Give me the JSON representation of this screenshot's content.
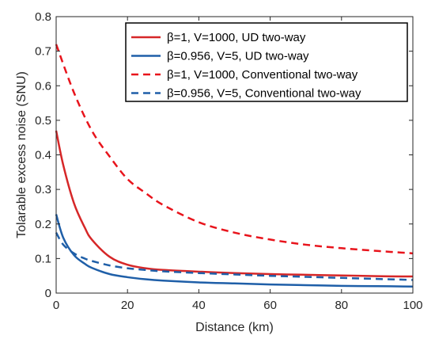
{
  "chart_data": {
    "type": "line",
    "xlabel": "Distance (km)",
    "ylabel": "Tolarable excess noise (SNU)",
    "xlim": [
      0,
      100
    ],
    "ylim": [
      0,
      0.8
    ],
    "x_ticks": [
      "0",
      "20",
      "40",
      "60",
      "80",
      "100"
    ],
    "y_ticks": [
      "0",
      "0.1",
      "0.2",
      "0.3",
      "0.4",
      "0.5",
      "0.6",
      "0.7",
      "0.8"
    ],
    "grid": false,
    "legend_position": "top-right",
    "series": [
      {
        "name": "β=1, V=1000, UD two-way",
        "color": "#d62728",
        "style": "solid",
        "x": [
          0,
          2,
          5,
          8,
          10,
          15,
          20,
          25,
          30,
          40,
          50,
          60,
          70,
          80,
          90,
          100
        ],
        "y": [
          0.47,
          0.37,
          0.26,
          0.19,
          0.155,
          0.105,
          0.082,
          0.072,
          0.067,
          0.062,
          0.058,
          0.055,
          0.053,
          0.051,
          0.049,
          0.048
        ]
      },
      {
        "name": "β=0.956, V=5, UD two-way",
        "color": "#1f5fa8",
        "style": "solid",
        "x": [
          0,
          2,
          5,
          8,
          10,
          15,
          20,
          25,
          30,
          40,
          50,
          60,
          70,
          80,
          90,
          100
        ],
        "y": [
          0.228,
          0.16,
          0.11,
          0.085,
          0.073,
          0.055,
          0.046,
          0.04,
          0.036,
          0.031,
          0.028,
          0.025,
          0.023,
          0.021,
          0.02,
          0.019
        ]
      },
      {
        "name": "β=1, V=1000, Conventional two-way",
        "color": "#e8141c",
        "style": "dashed",
        "x": [
          0,
          5,
          10,
          15,
          20,
          25,
          30,
          40,
          50,
          60,
          70,
          80,
          90,
          100
        ],
        "y": [
          0.72,
          0.58,
          0.47,
          0.395,
          0.33,
          0.29,
          0.255,
          0.205,
          0.175,
          0.155,
          0.14,
          0.13,
          0.122,
          0.115
        ]
      },
      {
        "name": "β=0.956, V=5, Conventional two-way",
        "color": "#1f5fa8",
        "style": "dashed",
        "x": [
          0,
          2,
          5,
          8,
          10,
          15,
          20,
          25,
          30,
          40,
          50,
          60,
          70,
          80,
          90,
          100
        ],
        "y": [
          0.175,
          0.14,
          0.115,
          0.1,
          0.093,
          0.08,
          0.072,
          0.067,
          0.063,
          0.058,
          0.054,
          0.05,
          0.047,
          0.044,
          0.041,
          0.038
        ]
      }
    ]
  }
}
